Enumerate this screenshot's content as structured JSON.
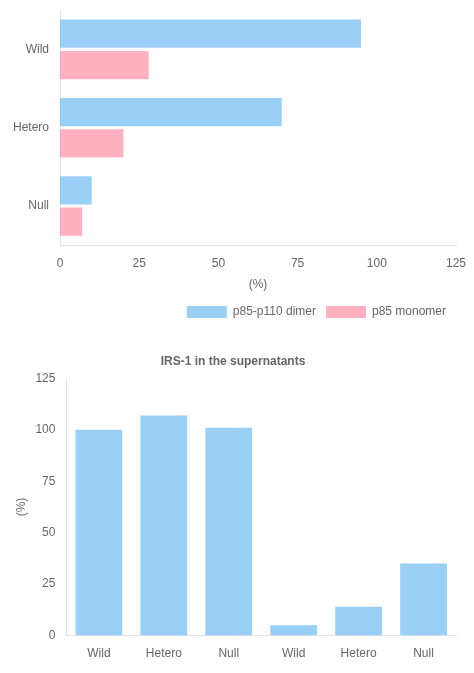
{
  "chart_data": [
    {
      "type": "bar",
      "orientation": "horizontal",
      "categories": [
        "Wild",
        "Hetero",
        "Null"
      ],
      "series": [
        {
          "name": "p85-p110 dimer",
          "values": [
            95,
            70,
            10
          ]
        },
        {
          "name": "p85 monomer",
          "values": [
            28,
            20,
            7
          ]
        }
      ],
      "xlabel": "(%)",
      "xlim": [
        0,
        125
      ],
      "xticks": [
        0,
        25,
        50,
        75,
        100,
        125
      ],
      "legend": "lower right",
      "grid": false
    },
    {
      "type": "bar",
      "title": "IRS-1 in the supernatants",
      "categories": [
        "Wild",
        "Hetero",
        "Null",
        "Wild",
        "Hetero",
        "Null"
      ],
      "values": [
        100,
        107,
        101,
        5,
        14,
        35
      ],
      "ylabel": "(%)",
      "ylim": [
        0,
        125
      ],
      "yticks": [
        0,
        25,
        50,
        75,
        100,
        125
      ],
      "grid": false
    }
  ]
}
